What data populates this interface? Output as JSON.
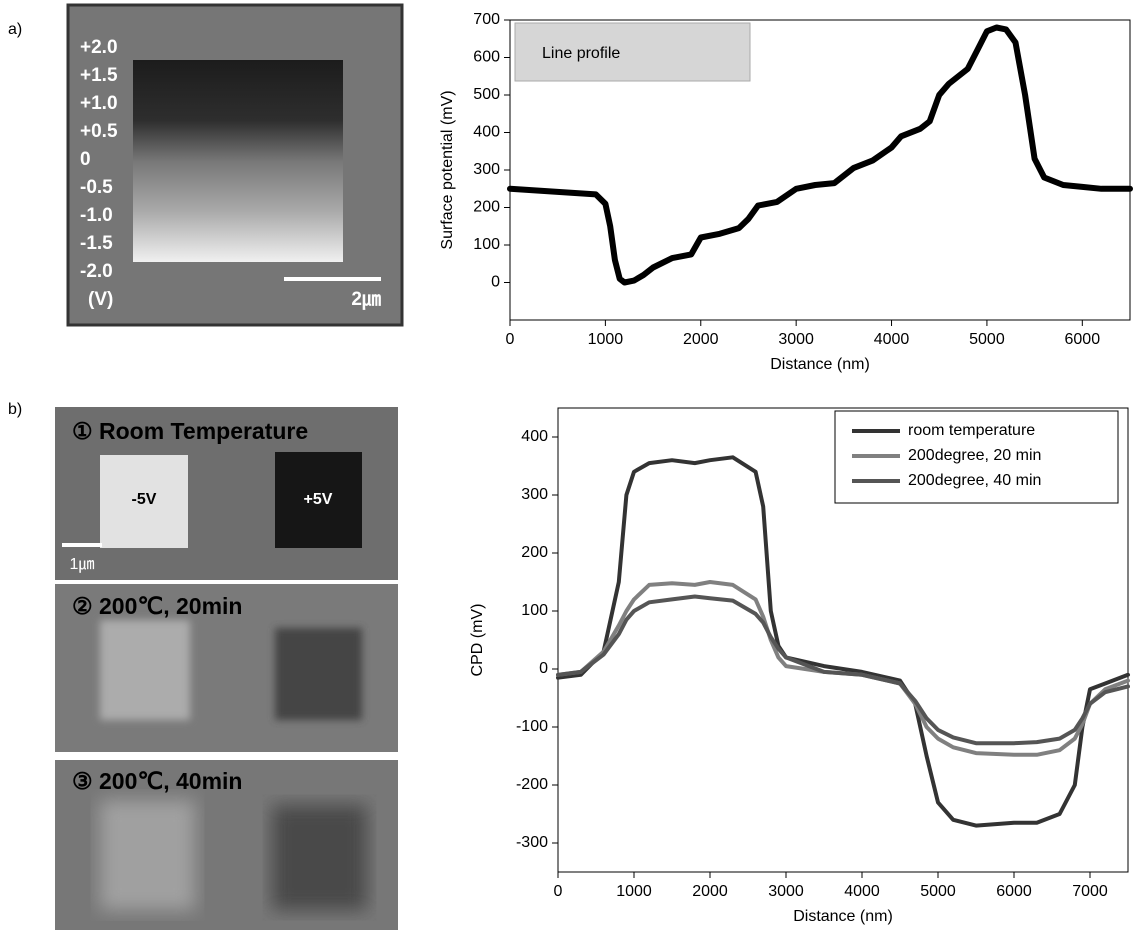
{
  "panels": {
    "a": {
      "label": "a)",
      "voltage_labels": [
        "+2.0",
        "+1.5",
        "+1.0",
        "+0.5",
        "0",
        "-0.5",
        "-1.0",
        "-1.5",
        "-2.0"
      ],
      "unit": "(V)",
      "scale_bar": "2㎛"
    },
    "b": {
      "label": "b)",
      "images": [
        {
          "title": "① Room Temperature",
          "left": "-5V",
          "right": "+5V",
          "scale_bar": "1㎛"
        },
        {
          "title": "② 200℃, 20min"
        },
        {
          "title": "③ 200℃, 40min"
        }
      ]
    }
  },
  "chart_data": [
    {
      "type": "line",
      "annotation": "Line profile",
      "xlabel": "Distance (nm)",
      "ylabel": "Surface potential (mV)",
      "x": [
        0,
        300,
        600,
        900,
        1000,
        1050,
        1100,
        1150,
        1200,
        1300,
        1400,
        1500,
        1700,
        1900,
        2000,
        2200,
        2400,
        2500,
        2600,
        2800,
        3000,
        3200,
        3400,
        3600,
        3800,
        4000,
        4100,
        4300,
        4400,
        4500,
        4600,
        4800,
        4900,
        5000,
        5100,
        5200,
        5300,
        5400,
        5500,
        5600,
        5800,
        6000,
        6200,
        6500
      ],
      "values": [
        250,
        245,
        240,
        235,
        210,
        150,
        60,
        10,
        0,
        5,
        20,
        40,
        65,
        75,
        120,
        130,
        145,
        170,
        205,
        215,
        250,
        260,
        265,
        305,
        325,
        360,
        390,
        410,
        430,
        500,
        530,
        570,
        620,
        670,
        680,
        675,
        640,
        500,
        330,
        280,
        260,
        255,
        250,
        250
      ],
      "color": "#000000",
      "xlim": [
        0,
        6500
      ],
      "ylim": [
        -100,
        700
      ],
      "xticks": [
        0,
        1000,
        2000,
        3000,
        4000,
        5000,
        6000
      ],
      "yticks": [
        0,
        100,
        200,
        300,
        400,
        500,
        600,
        700
      ]
    },
    {
      "type": "line",
      "xlabel": "Distance (nm)",
      "ylabel": "CPD (mV)",
      "legend": "upper right",
      "x": [
        0,
        300,
        600,
        800,
        900,
        1000,
        1200,
        1500,
        1800,
        2000,
        2300,
        2600,
        2700,
        2800,
        2900,
        3000,
        3500,
        4000,
        4500,
        4700,
        4850,
        5000,
        5200,
        5500,
        6000,
        6300,
        6600,
        6800,
        6900,
        7000,
        7200,
        7500
      ],
      "series": [
        {
          "name": "room temperature",
          "color": "#333333",
          "values": [
            -15,
            -10,
            30,
            150,
            300,
            340,
            355,
            360,
            355,
            360,
            365,
            340,
            280,
            100,
            40,
            20,
            5,
            -5,
            -20,
            -60,
            -150,
            -230,
            -260,
            -270,
            -265,
            -265,
            -250,
            -200,
            -100,
            -35,
            -25,
            -10
          ]
        },
        {
          "name": "200degree, 20 min",
          "color": "#808080",
          "values": [
            -10,
            -5,
            30,
            75,
            100,
            120,
            145,
            148,
            145,
            150,
            145,
            120,
            90,
            50,
            20,
            5,
            -5,
            -10,
            -25,
            -60,
            -100,
            -120,
            -135,
            -145,
            -148,
            -148,
            -140,
            -120,
            -95,
            -60,
            -35,
            -20
          ]
        },
        {
          "name": "200degree, 40 min",
          "color": "#555555",
          "values": [
            -10,
            -5,
            25,
            60,
            85,
            100,
            115,
            120,
            125,
            122,
            118,
            95,
            80,
            55,
            35,
            20,
            -5,
            -10,
            -25,
            -55,
            -85,
            -105,
            -118,
            -128,
            -128,
            -126,
            -120,
            -105,
            -85,
            -60,
            -40,
            -30
          ]
        }
      ],
      "xlim": [
        0,
        7500
      ],
      "ylim": [
        -350,
        450
      ],
      "xticks": [
        0,
        1000,
        2000,
        3000,
        4000,
        5000,
        6000,
        7000
      ],
      "yticks": [
        -300,
        -200,
        -100,
        0,
        100,
        200,
        300,
        400
      ]
    }
  ]
}
